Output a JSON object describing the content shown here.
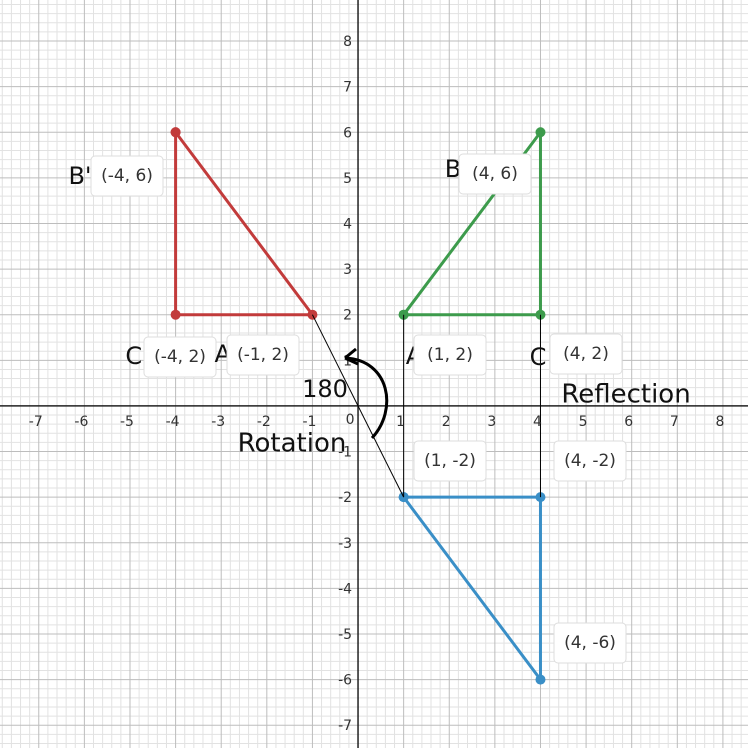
{
  "chart_data": {
    "type": "line",
    "xlim": [
      -7.85,
      8.55
    ],
    "ylim": [
      -7.5,
      8.9
    ],
    "xticks": [
      -7,
      -6,
      -5,
      -4,
      -3,
      -2,
      -1,
      1,
      2,
      3,
      4,
      5,
      6,
      7,
      8
    ],
    "yticks": [
      -7,
      -6,
      -5,
      -4,
      -3,
      -2,
      -1,
      1,
      2,
      3,
      4,
      5,
      6,
      7,
      8
    ],
    "origin_label": "0",
    "grid": true,
    "series": [
      {
        "color": "#c23b3b",
        "markers": true,
        "x": [
          -4,
          -1,
          -4,
          -4
        ],
        "values": [
          6,
          2,
          2,
          6
        ]
      },
      {
        "color": "#3d9b4c",
        "markers": true,
        "x": [
          1,
          4,
          4,
          1
        ],
        "values": [
          2,
          6,
          2,
          2
        ]
      },
      {
        "color": "#3a8fc7",
        "markers": true,
        "x": [
          1,
          4,
          4,
          1
        ],
        "values": [
          -2,
          -2,
          -6,
          -2
        ]
      },
      {
        "color": "#000000",
        "markers": false,
        "x": [
          -1,
          1
        ],
        "values": [
          2,
          -2
        ]
      },
      {
        "color": "#000000",
        "markers": false,
        "x": [
          1,
          1
        ],
        "values": [
          2,
          -2
        ]
      },
      {
        "color": "#000000",
        "markers": false,
        "x": [
          4,
          4
        ],
        "values": [
          2,
          -2
        ]
      }
    ],
    "annotations": [
      "B'",
      "(-4, 6)",
      "C'",
      "(-4, 2)",
      "A'",
      "(-1, 2)",
      "B",
      "(4, 6)",
      "A",
      "(1, 2)",
      "C",
      "(4, 2)",
      "Reflection",
      "180",
      "Rotation",
      "(1, -2)",
      "(4, -2)",
      "(4, -6)"
    ]
  }
}
